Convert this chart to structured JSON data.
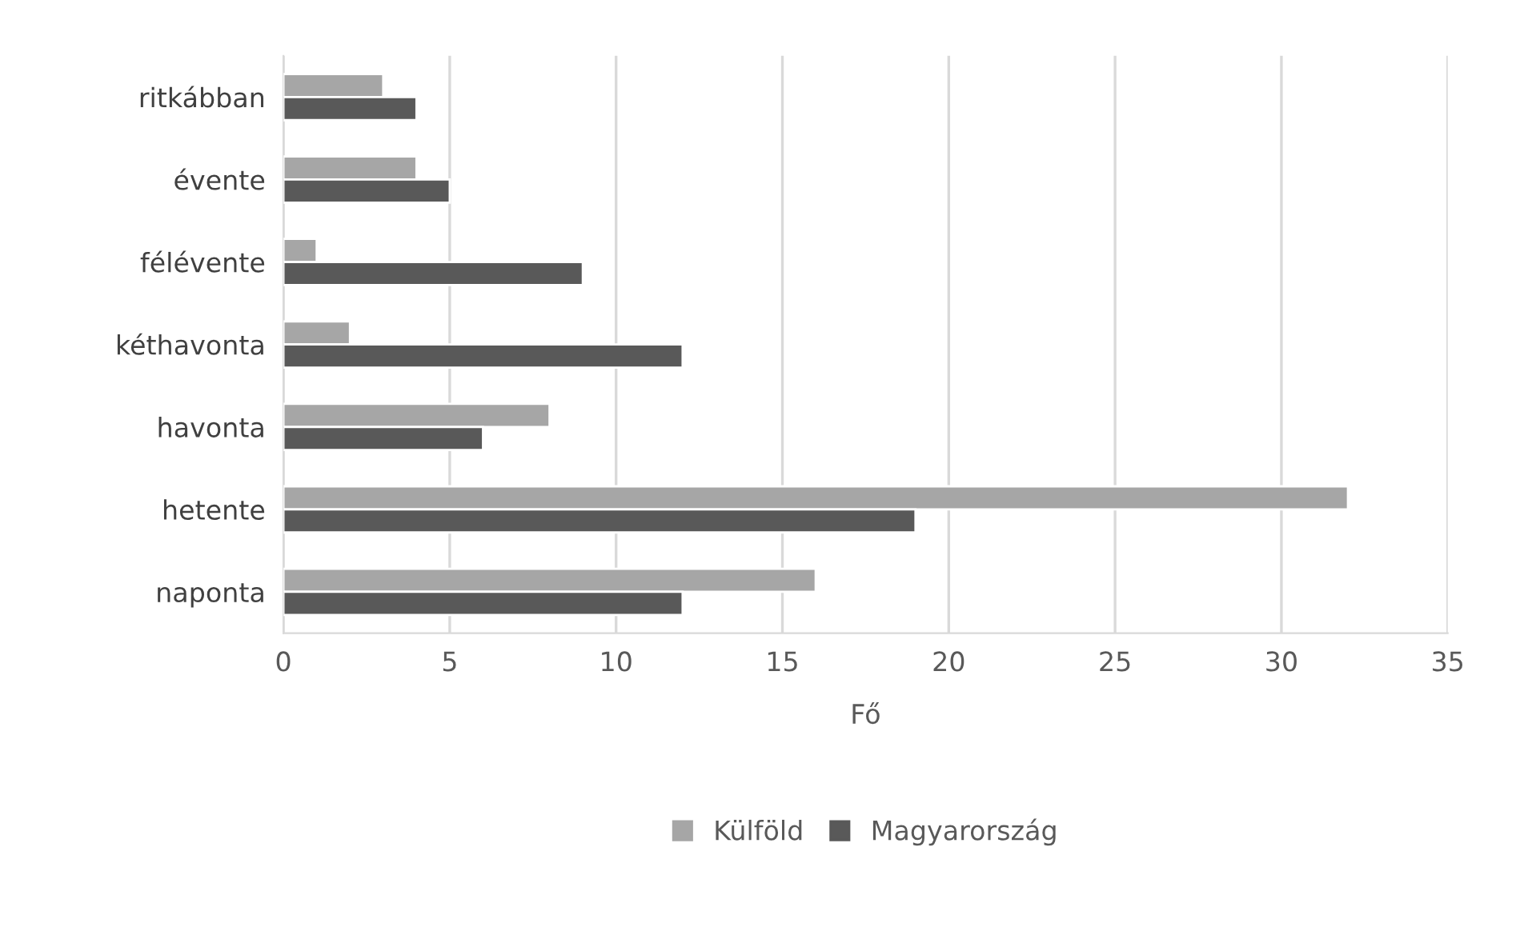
{
  "chart_data": {
    "type": "bar",
    "orientation": "horizontal",
    "xlabel": "Fő",
    "categories": [
      "ritkábban",
      "évente",
      "félévente",
      "kéthavonta",
      "havonta",
      "hetente",
      "naponta"
    ],
    "series": [
      {
        "name": "Külföld",
        "color": "#a6a6a6",
        "values": [
          3,
          4,
          1,
          2,
          8,
          32,
          16
        ]
      },
      {
        "name": "Magyarország",
        "color": "#595959",
        "values": [
          4,
          5,
          9,
          12,
          6,
          19,
          12
        ]
      }
    ],
    "xlim": [
      0,
      35
    ],
    "xticks": [
      0,
      5,
      10,
      15,
      20,
      25,
      30,
      35
    ],
    "grid": "x",
    "legend": "bottom"
  }
}
